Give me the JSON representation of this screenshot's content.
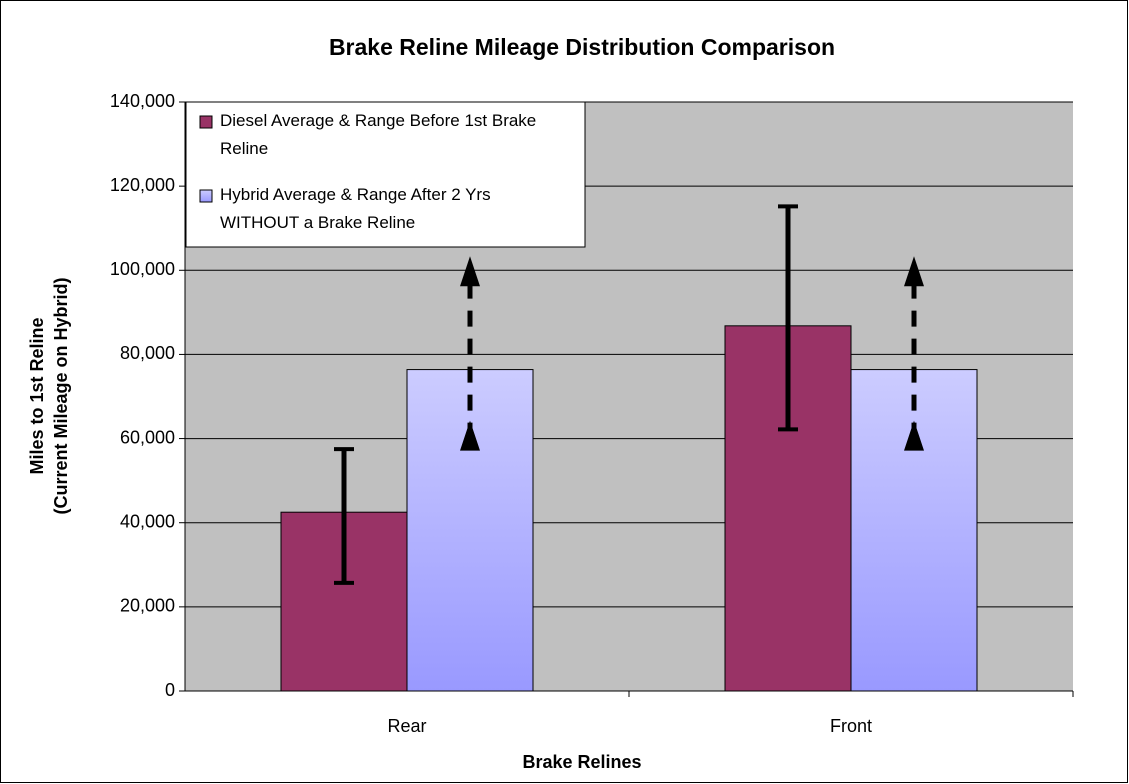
{
  "chart_data": {
    "type": "bar",
    "title": "Brake Reline Mileage Distribution Comparison",
    "x_label": "Brake Relines",
    "y_label": [
      "Miles to 1st Reline",
      "(Current Mileage on Hybrid)"
    ],
    "categories": [
      "Rear",
      "Front"
    ],
    "series": [
      {
        "name": "Diesel Average & Range Before 1st Brake Reline",
        "color": "#993366",
        "values": [
          42500,
          86800
        ],
        "range_low": [
          25700,
          62200
        ],
        "range_high": [
          57500,
          115200
        ],
        "range_style": "error-bar"
      },
      {
        "name": "Hybrid Average & Range After 2 Yrs WITHOUT a Brake Reline",
        "color": [
          "#ccccff",
          "#9999ff"
        ],
        "values": [
          76400,
          76400
        ],
        "range_low": [
          60000,
          60000
        ],
        "range_high": [
          100000,
          100000
        ],
        "range_style": "arrow"
      }
    ],
    "ylim": [
      0,
      140000
    ],
    "yticks": [
      0,
      {
        "value": 20000,
        "label": "20,000"
      },
      {
        "value": 40000,
        "label": "40,000"
      },
      {
        "value": 60000,
        "label": "60,000"
      },
      {
        "value": 80000,
        "label": "80,000"
      },
      {
        "value": 100000,
        "label": "100,000"
      },
      {
        "value": 120000,
        "label": "120,000"
      },
      {
        "value": 140000,
        "label": "140,000"
      }
    ],
    "grid": true,
    "legend": "top-left"
  }
}
